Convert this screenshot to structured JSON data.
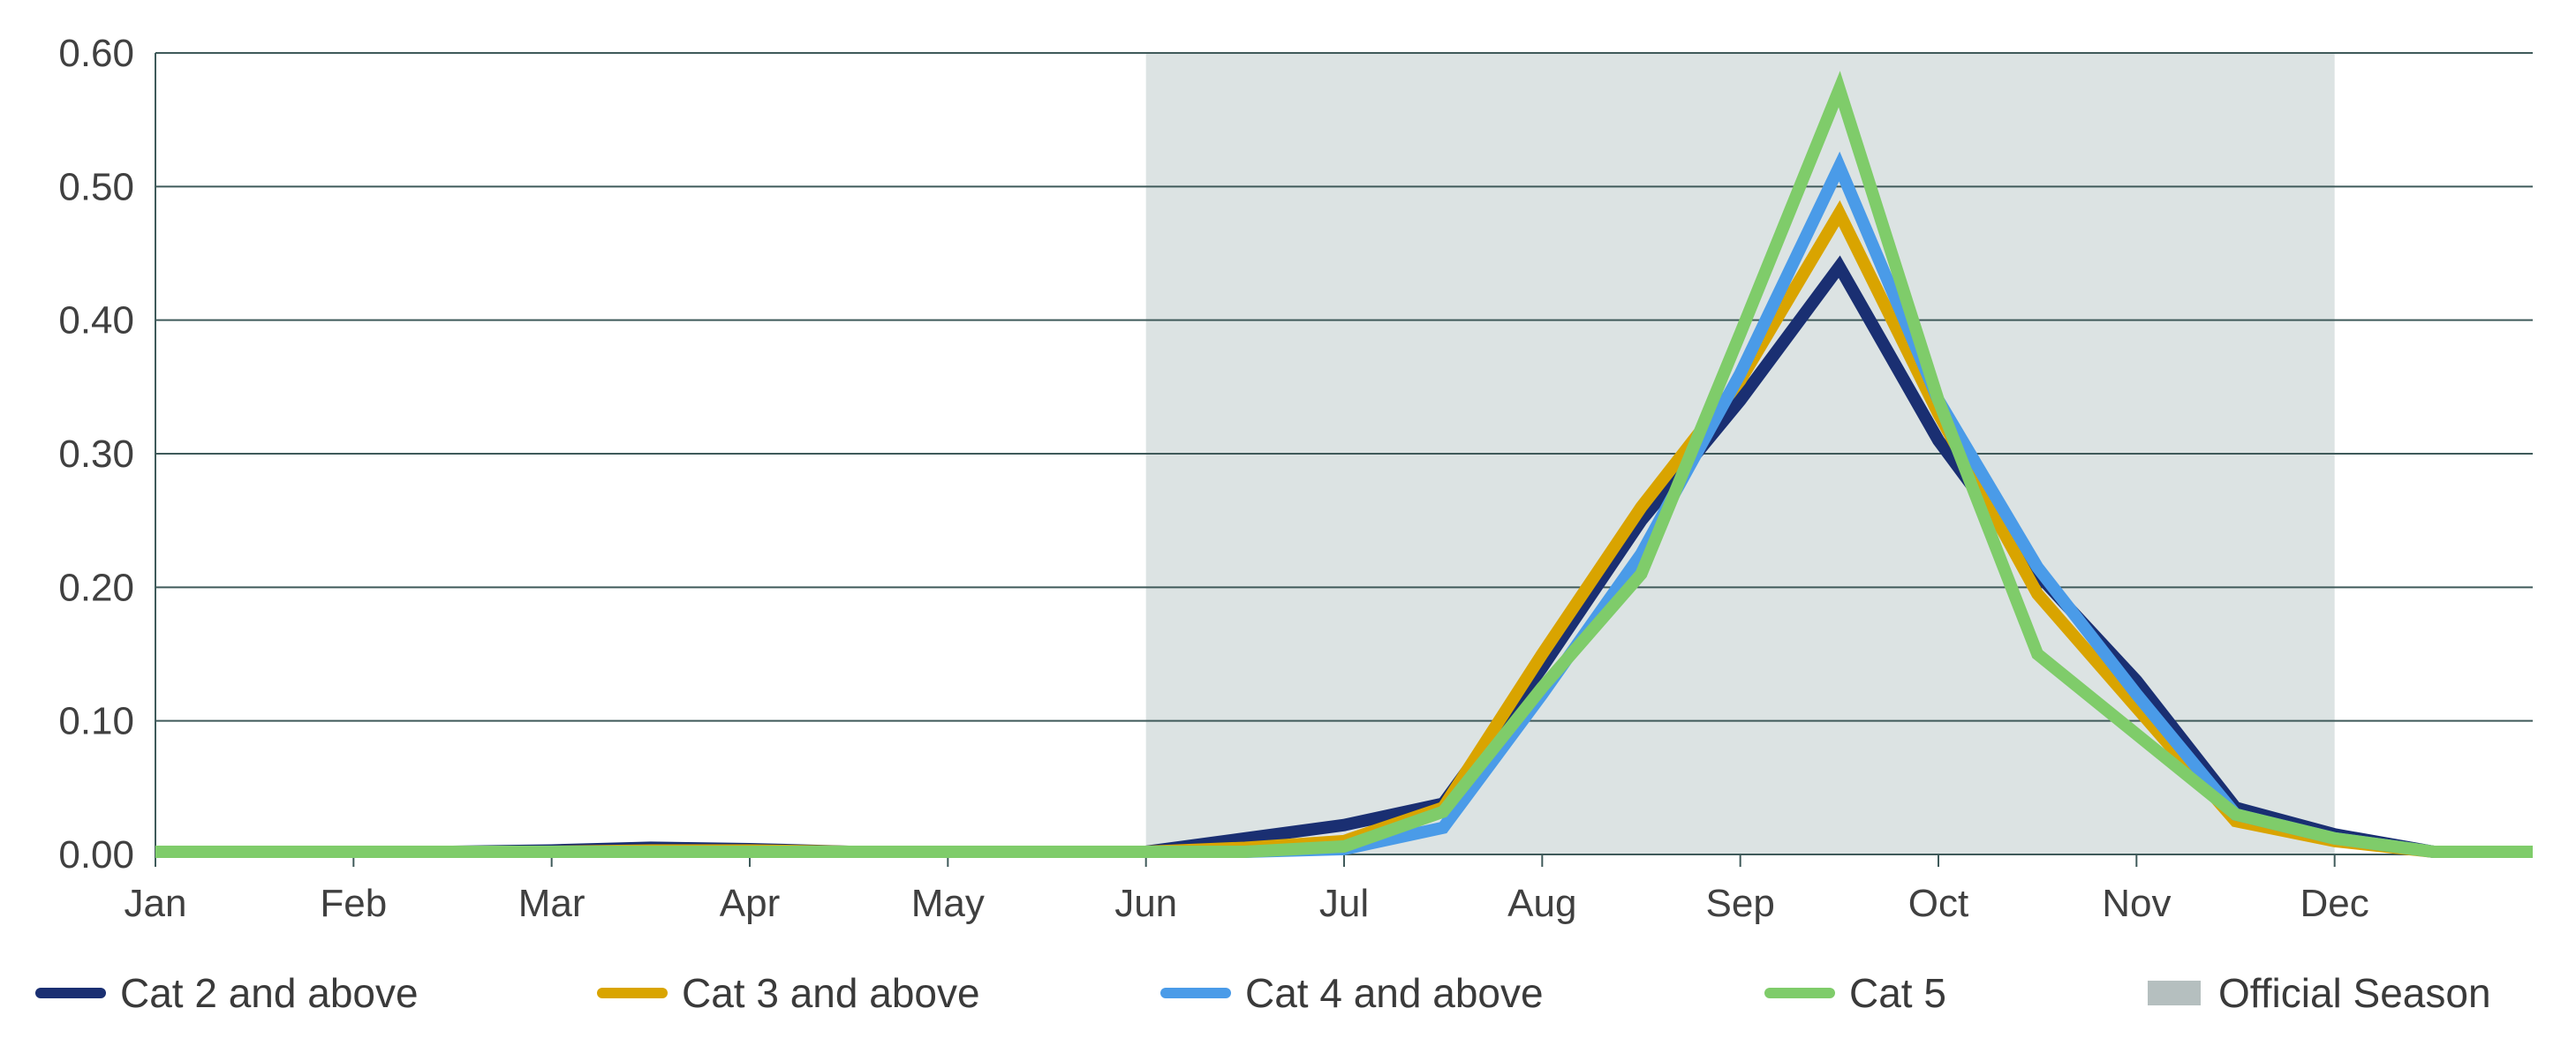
{
  "chart_data": {
    "type": "line",
    "x_ticks": [
      "Jan",
      "Feb",
      "Mar",
      "Apr",
      "May",
      "Jun",
      "Jul",
      "Aug",
      "Sep",
      "Oct",
      "Nov",
      "Dec"
    ],
    "x": [
      0,
      0.5,
      1,
      1.5,
      2,
      2.5,
      3,
      3.5,
      4,
      4.5,
      5,
      5.5,
      6,
      6.5,
      7,
      7.5,
      8,
      8.5,
      9,
      9.5,
      10,
      10.5,
      11,
      11.5,
      12
    ],
    "ylim": [
      0,
      0.6
    ],
    "y_ticks": [
      "0.00",
      "0.10",
      "0.20",
      "0.30",
      "0.40",
      "0.50",
      "0.60"
    ],
    "grid": "horizontal",
    "shaded_band": {
      "name": "Official Season",
      "from": 5,
      "to": 11,
      "color": "#dce3e3",
      "legend_color": "#b5bfbf"
    },
    "series": [
      {
        "name": "Cat 2 and above",
        "color": "#1a2f72",
        "values": [
          0.002,
          0.002,
          0.002,
          0.002,
          0.003,
          0.005,
          0.004,
          0.002,
          0.002,
          0.002,
          0.002,
          0.012,
          0.022,
          0.038,
          0.14,
          0.25,
          0.34,
          0.44,
          0.31,
          0.21,
          0.13,
          0.035,
          0.015,
          0.002,
          0.002
        ]
      },
      {
        "name": "Cat 3 and above",
        "color": "#d9a400",
        "values": [
          0.002,
          0.002,
          0.002,
          0.002,
          0.002,
          0.003,
          0.003,
          0.002,
          0.002,
          0.002,
          0.002,
          0.005,
          0.01,
          0.035,
          0.15,
          0.26,
          0.355,
          0.48,
          0.33,
          0.195,
          0.11,
          0.025,
          0.01,
          0.002,
          0.002
        ]
      },
      {
        "name": "Cat 4 and above",
        "color": "#4a9be8",
        "values": [
          0.002,
          0.002,
          0.002,
          0.002,
          0.002,
          0.002,
          0.002,
          0.002,
          0.002,
          0.002,
          0.002,
          0.002,
          0.004,
          0.02,
          0.12,
          0.225,
          0.36,
          0.515,
          0.34,
          0.215,
          0.12,
          0.03,
          0.012,
          0.002,
          0.002
        ]
      },
      {
        "name": "Cat 5",
        "color": "#7fcc6a",
        "values": [
          0.002,
          0.002,
          0.002,
          0.002,
          0.002,
          0.002,
          0.002,
          0.002,
          0.002,
          0.002,
          0.002,
          0.002,
          0.006,
          0.032,
          0.125,
          0.21,
          0.39,
          0.573,
          0.34,
          0.15,
          0.09,
          0.03,
          0.012,
          0.002,
          0.002
        ]
      }
    ],
    "legend": {
      "placement": "bottom"
    }
  }
}
